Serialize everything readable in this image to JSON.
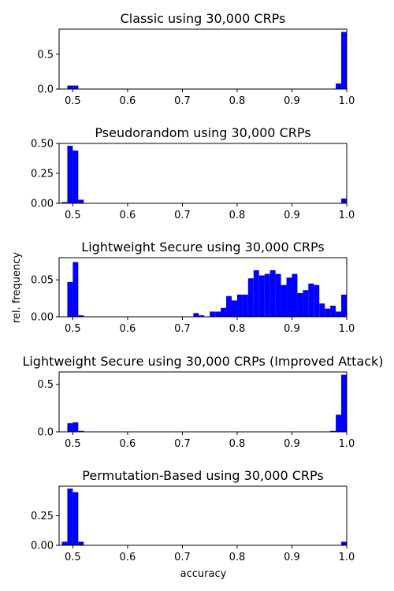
{
  "figure": {
    "ylabel": "rel. frequency",
    "xlabel": "accuracy",
    "bar_color": "#0000ff"
  },
  "chart_data": [
    {
      "type": "bar",
      "title": "Classic using 30,000 CRPs",
      "xlim": [
        0.475,
        1.0
      ],
      "ylim": [
        0.0,
        0.86
      ],
      "bin_width": 0.01,
      "xticks": [
        "0.5",
        "0.6",
        "0.7",
        "0.8",
        "0.9",
        "1.0"
      ],
      "xtick_values": [
        0.5,
        0.6,
        0.7,
        0.8,
        0.9,
        1.0
      ],
      "yticks": [
        "0.0",
        "0.5"
      ],
      "ytick_values": [
        0.0,
        0.5
      ],
      "bins": [
        {
          "x": 0.49,
          "y": 0.05
        },
        {
          "x": 0.5,
          "y": 0.05
        },
        {
          "x": 0.98,
          "y": 0.08
        },
        {
          "x": 0.99,
          "y": 0.82
        }
      ]
    },
    {
      "type": "bar",
      "title": "Pseudorandom using 30,000 CRPs",
      "xlim": [
        0.475,
        1.0
      ],
      "ylim": [
        0.0,
        0.5
      ],
      "bin_width": 0.01,
      "xticks": [
        "0.5",
        "0.6",
        "0.7",
        "0.8",
        "0.9",
        "1.0"
      ],
      "xtick_values": [
        0.5,
        0.6,
        0.7,
        0.8,
        0.9,
        1.0
      ],
      "yticks": [
        "0.00",
        "0.25",
        "0.50"
      ],
      "ytick_values": [
        0.0,
        0.25,
        0.5
      ],
      "bins": [
        {
          "x": 0.48,
          "y": 0.01
        },
        {
          "x": 0.49,
          "y": 0.48
        },
        {
          "x": 0.5,
          "y": 0.44
        },
        {
          "x": 0.51,
          "y": 0.03
        },
        {
          "x": 0.99,
          "y": 0.04
        }
      ]
    },
    {
      "type": "bar",
      "title": "Lightweight Secure using 30,000 CRPs",
      "xlim": [
        0.475,
        1.0
      ],
      "ylim": [
        0.0,
        0.08
      ],
      "bin_width": 0.01,
      "xticks": [
        "0.5",
        "0.6",
        "0.7",
        "0.8",
        "0.9",
        "1.0"
      ],
      "xtick_values": [
        0.5,
        0.6,
        0.7,
        0.8,
        0.9,
        1.0
      ],
      "yticks": [
        "0.00",
        "0.05"
      ],
      "ytick_values": [
        0.0,
        0.05
      ],
      "bins": [
        {
          "x": 0.49,
          "y": 0.047
        },
        {
          "x": 0.5,
          "y": 0.074
        },
        {
          "x": 0.51,
          "y": 0.002
        },
        {
          "x": 0.72,
          "y": 0.005
        },
        {
          "x": 0.73,
          "y": 0.002
        },
        {
          "x": 0.75,
          "y": 0.007
        },
        {
          "x": 0.76,
          "y": 0.007
        },
        {
          "x": 0.77,
          "y": 0.012
        },
        {
          "x": 0.78,
          "y": 0.028
        },
        {
          "x": 0.79,
          "y": 0.022
        },
        {
          "x": 0.8,
          "y": 0.03
        },
        {
          "x": 0.81,
          "y": 0.03
        },
        {
          "x": 0.82,
          "y": 0.052
        },
        {
          "x": 0.83,
          "y": 0.063
        },
        {
          "x": 0.84,
          "y": 0.056
        },
        {
          "x": 0.85,
          "y": 0.058
        },
        {
          "x": 0.86,
          "y": 0.063
        },
        {
          "x": 0.87,
          "y": 0.058
        },
        {
          "x": 0.88,
          "y": 0.043
        },
        {
          "x": 0.89,
          "y": 0.053
        },
        {
          "x": 0.9,
          "y": 0.058
        },
        {
          "x": 0.91,
          "y": 0.032
        },
        {
          "x": 0.92,
          "y": 0.036
        },
        {
          "x": 0.93,
          "y": 0.045
        },
        {
          "x": 0.94,
          "y": 0.043
        },
        {
          "x": 0.95,
          "y": 0.018
        },
        {
          "x": 0.96,
          "y": 0.011
        },
        {
          "x": 0.97,
          "y": 0.015
        },
        {
          "x": 0.98,
          "y": 0.007
        },
        {
          "x": 0.99,
          "y": 0.03
        }
      ]
    },
    {
      "type": "bar",
      "title": "Lightweight Secure using 30,000 CRPs (Improved Attack)",
      "xlim": [
        0.475,
        1.0
      ],
      "ylim": [
        0.0,
        0.63
      ],
      "bin_width": 0.01,
      "xticks": [
        "0.5",
        "0.6",
        "0.7",
        "0.8",
        "0.9",
        "1.0"
      ],
      "xtick_values": [
        0.5,
        0.6,
        0.7,
        0.8,
        0.9,
        1.0
      ],
      "yticks": [
        "0.0",
        "0.5"
      ],
      "ytick_values": [
        0.0,
        0.5
      ],
      "bins": [
        {
          "x": 0.48,
          "y": 0.004
        },
        {
          "x": 0.49,
          "y": 0.09
        },
        {
          "x": 0.5,
          "y": 0.1
        },
        {
          "x": 0.51,
          "y": 0.01
        },
        {
          "x": 0.97,
          "y": 0.01
        },
        {
          "x": 0.98,
          "y": 0.18
        },
        {
          "x": 0.99,
          "y": 0.6
        }
      ]
    },
    {
      "type": "bar",
      "title": "Permutation-Based using 30,000 CRPs",
      "xlim": [
        0.475,
        1.0
      ],
      "ylim": [
        0.0,
        0.5
      ],
      "bin_width": 0.01,
      "xticks": [
        "0.5",
        "0.6",
        "0.7",
        "0.8",
        "0.9",
        "1.0"
      ],
      "xtick_values": [
        0.5,
        0.6,
        0.7,
        0.8,
        0.9,
        1.0
      ],
      "yticks": [
        "0.00",
        "0.25"
      ],
      "ytick_values": [
        0.0,
        0.25
      ],
      "bins": [
        {
          "x": 0.48,
          "y": 0.03
        },
        {
          "x": 0.49,
          "y": 0.48
        },
        {
          "x": 0.5,
          "y": 0.45
        },
        {
          "x": 0.51,
          "y": 0.03
        },
        {
          "x": 0.99,
          "y": 0.03
        }
      ]
    }
  ]
}
